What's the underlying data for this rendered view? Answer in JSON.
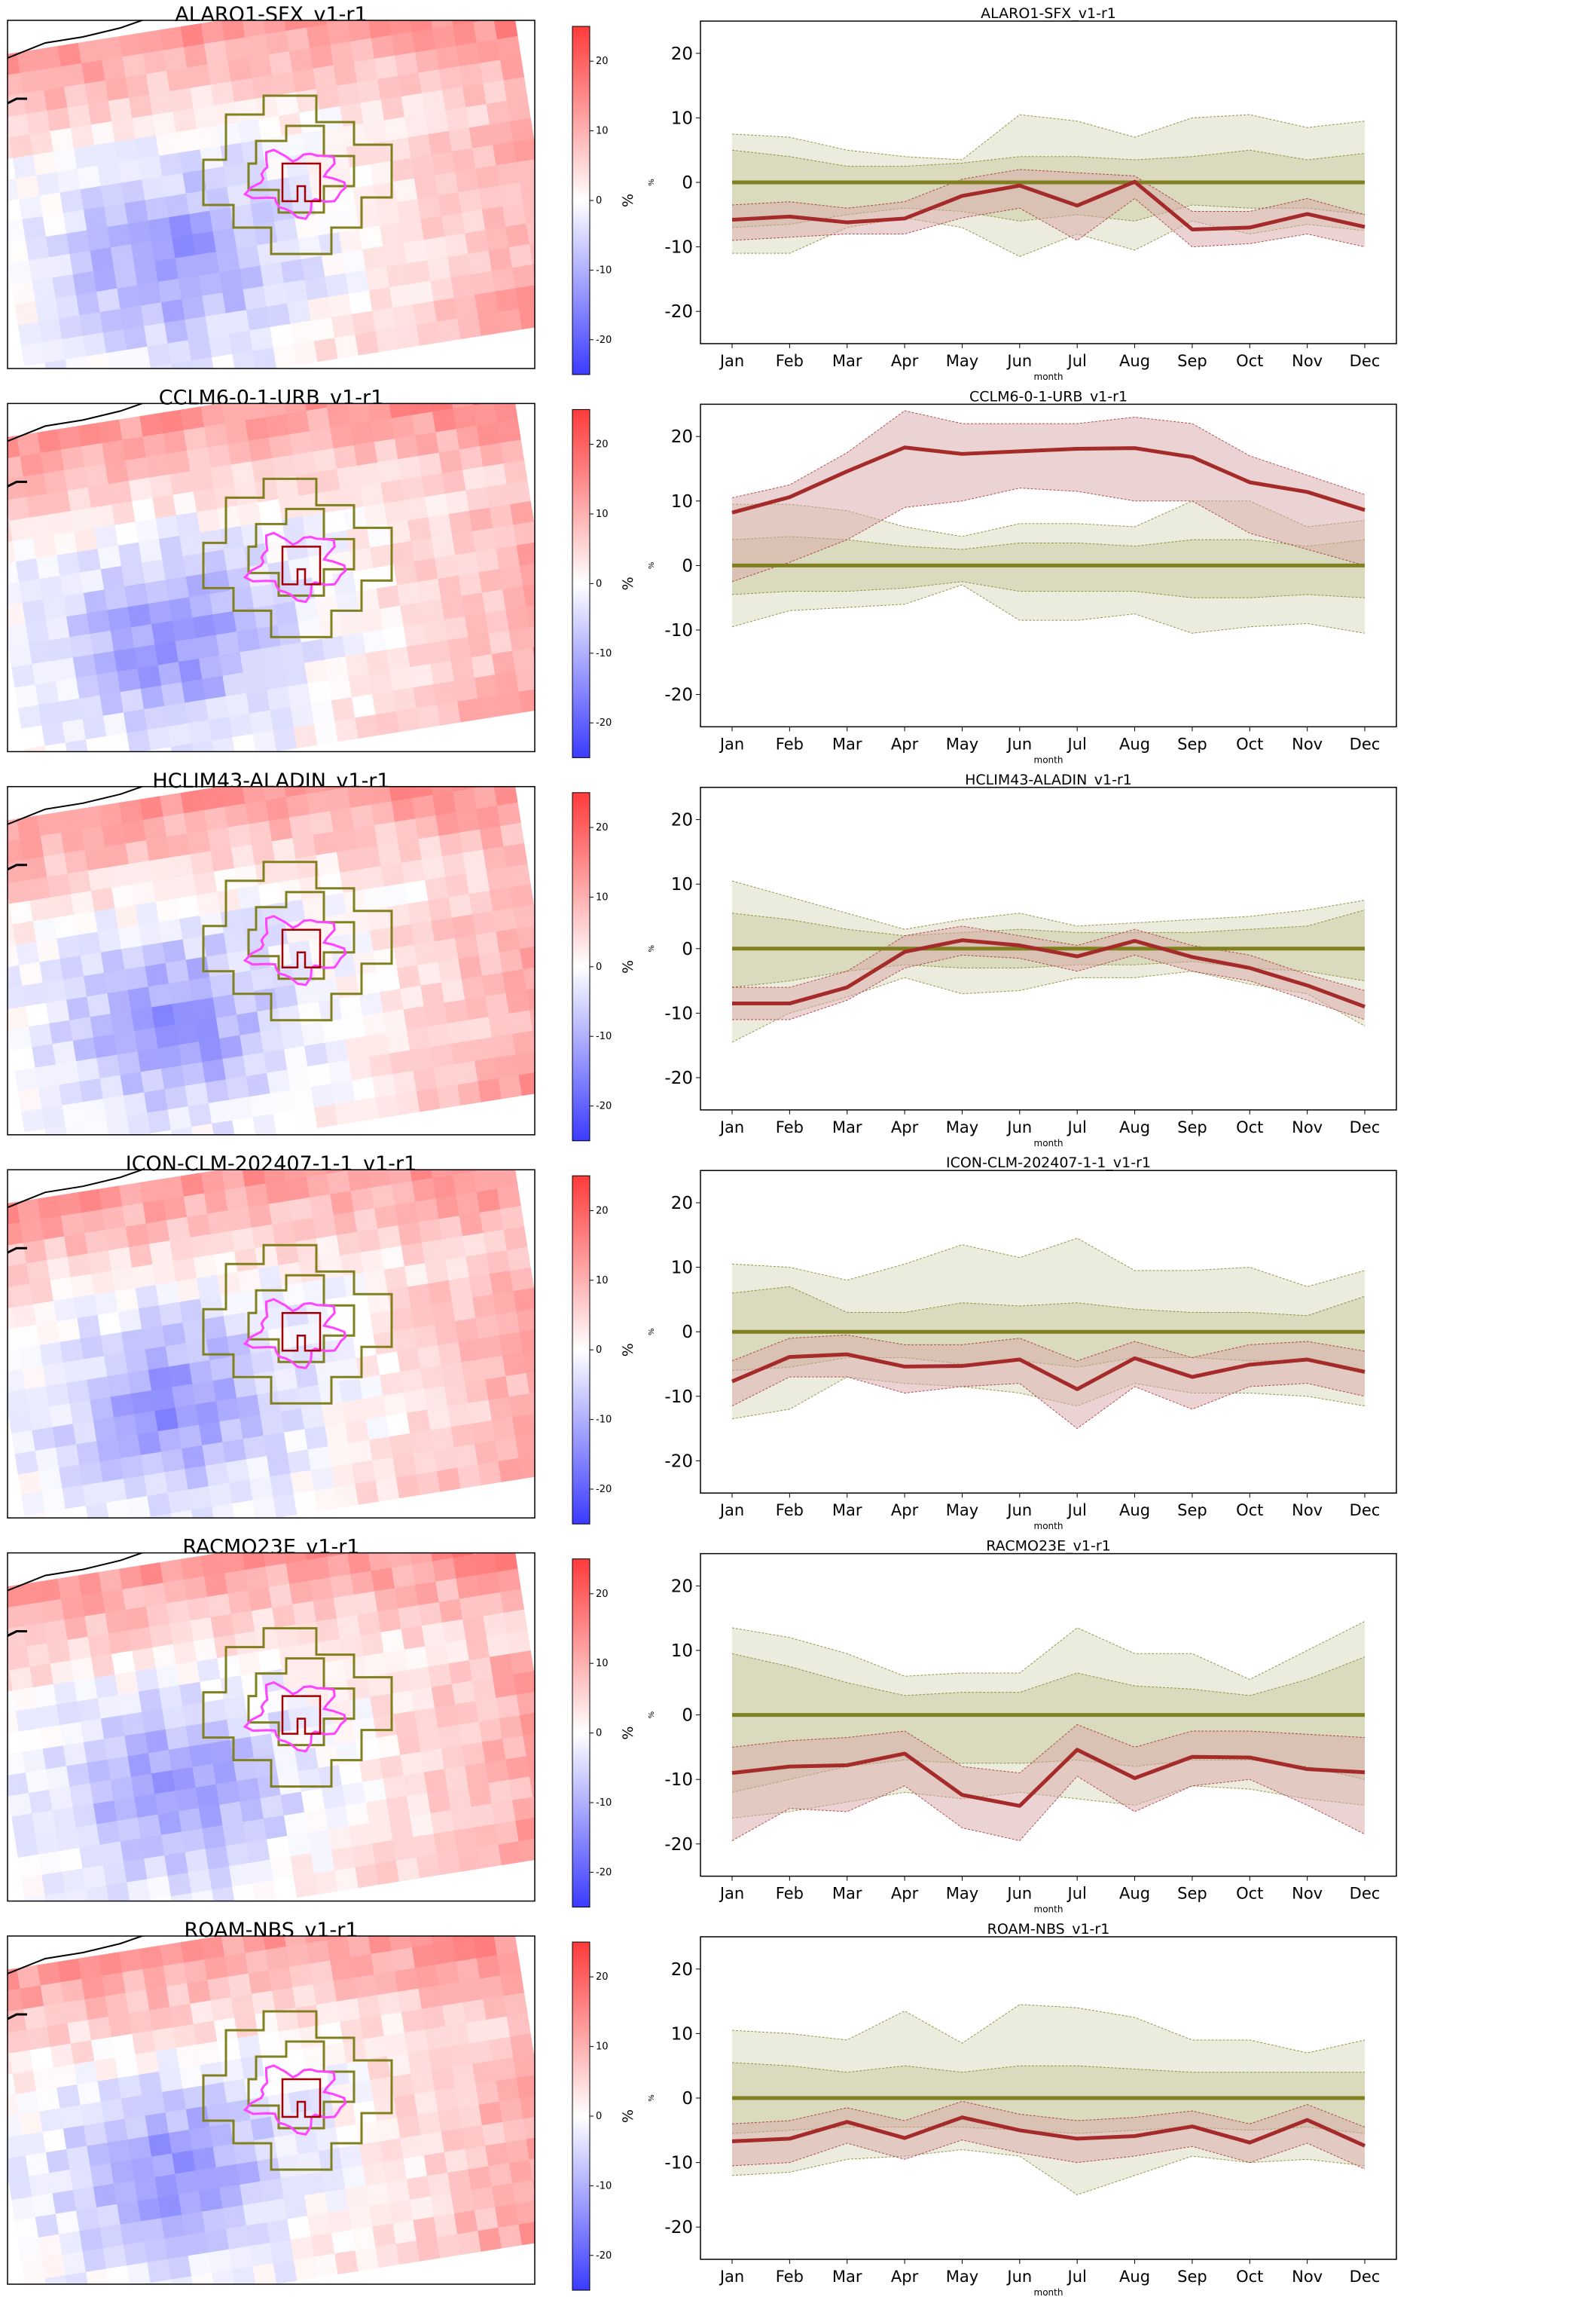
{
  "colorbar": {
    "ticks": [
      -20,
      -10,
      0,
      10,
      20
    ],
    "range": [
      -25,
      25
    ],
    "unit_label": "%",
    "colors": {
      "low": "#3b3bff",
      "mid": "#ffffff",
      "high": "#ff3b3b"
    }
  },
  "colors": {
    "model_line": "#a52a2a",
    "model_band": "#d8a8a8",
    "reference_line": "#808020",
    "reference_band": "#c8c8a0",
    "urban_outline": "#ff44ff",
    "rural_ring_outline": "#808020",
    "city_cell_outline": "#a00000",
    "coastline": "#000000"
  },
  "shared": {
    "xlabel": "month",
    "ylabel": "%",
    "months": [
      "Jan",
      "Feb",
      "Mar",
      "Apr",
      "May",
      "Jun",
      "Jul",
      "Aug",
      "Sep",
      "Oct",
      "Nov",
      "Dec"
    ],
    "yticks": [
      -20,
      -10,
      0,
      10,
      20
    ],
    "ylim": [
      -25,
      25
    ]
  },
  "chart_data": [
    {
      "type": "line",
      "title": "ALARO1-SFX_v1-r1",
      "map_title": "ALARO1-SFX_v1-r1",
      "series": [
        {
          "values": [
            -5.8,
            -5.3,
            -6.2,
            -5.6,
            -2.1,
            -0.5,
            -3.6,
            0.1,
            -7.3,
            -7.0,
            -4.9,
            -6.9
          ]
        },
        {
          "values": [
            0,
            0,
            0,
            0,
            0,
            0,
            0,
            0,
            0,
            0,
            0,
            0
          ]
        }
      ],
      "model_band": {
        "upper": [
          -3.5,
          -3.0,
          -4.0,
          -3.0,
          0.5,
          2.0,
          1.5,
          1.0,
          -4.5,
          -4.5,
          -2.5,
          -5.0
        ],
        "lower": [
          -9.0,
          -8.5,
          -8.0,
          -8.0,
          -5.5,
          -4.0,
          -9.0,
          -2.5,
          -10.0,
          -9.5,
          -8.0,
          -10.0
        ]
      },
      "ref_band_outer": {
        "upper": [
          7.5,
          7.0,
          5.0,
          4.0,
          3.5,
          10.5,
          9.5,
          7.0,
          10.0,
          10.5,
          8.5,
          9.5
        ],
        "lower": [
          -11.0,
          -11.0,
          -7.0,
          -5.5,
          -7.0,
          -11.5,
          -8.0,
          -10.5,
          -6.0,
          -8.0,
          -6.5,
          -7.5
        ]
      },
      "ref_band_inner": {
        "upper": [
          5.0,
          4.0,
          2.5,
          2.5,
          3.0,
          4.0,
          4.0,
          3.5,
          4.0,
          5.0,
          3.5,
          4.5
        ],
        "lower": [
          -7.0,
          -6.5,
          -5.0,
          -4.0,
          -4.5,
          -6.0,
          -5.0,
          -6.0,
          -3.5,
          -4.0,
          -4.0,
          -5.0
        ]
      }
    },
    {
      "type": "line",
      "title": "CCLM6-0-1-URB_v1-r1",
      "map_title": "CCLM6-0-1-URB_v1-r1",
      "series": [
        {
          "values": [
            8.2,
            10.6,
            14.6,
            18.3,
            17.3,
            17.7,
            18.1,
            18.2,
            16.8,
            12.9,
            11.4,
            8.6
          ]
        },
        {
          "values": [
            0,
            0,
            0,
            0,
            0,
            0,
            0,
            0,
            0,
            0,
            0,
            0
          ]
        }
      ],
      "model_band": {
        "upper": [
          10.5,
          12.5,
          17.5,
          24.0,
          22.0,
          22.0,
          22.0,
          23.0,
          22.0,
          17.0,
          14.0,
          11.0
        ],
        "lower": [
          -2.5,
          0.5,
          4.0,
          9.0,
          10.0,
          12.0,
          11.5,
          10.0,
          10.0,
          5.0,
          2.5,
          0.0
        ]
      },
      "ref_band_outer": {
        "upper": [
          9.5,
          9.5,
          8.5,
          6.0,
          4.5,
          6.5,
          6.5,
          6.0,
          10.0,
          10.0,
          6.0,
          7.0
        ],
        "lower": [
          -9.5,
          -7.0,
          -6.5,
          -6.0,
          -3.0,
          -8.5,
          -8.5,
          -7.5,
          -10.5,
          -9.5,
          -9.0,
          -10.5
        ]
      },
      "ref_band_inner": {
        "upper": [
          4.0,
          4.5,
          4.0,
          3.0,
          2.5,
          3.5,
          3.5,
          3.0,
          4.0,
          4.0,
          3.0,
          4.0
        ],
        "lower": [
          -4.5,
          -4.0,
          -4.0,
          -3.5,
          -2.5,
          -4.0,
          -4.0,
          -4.0,
          -5.0,
          -5.0,
          -4.5,
          -5.0
        ]
      }
    },
    {
      "type": "line",
      "title": "HCLIM43-ALADIN_v1-r1",
      "map_title": "HCLIM43-ALADIN_v1-r1",
      "series": [
        {
          "values": [
            -8.5,
            -8.5,
            -6.0,
            -0.5,
            1.3,
            0.5,
            -1.2,
            1.2,
            -1.3,
            -3.0,
            -5.7,
            -9.0
          ]
        },
        {
          "values": [
            0,
            0,
            0,
            0,
            0,
            0,
            0,
            0,
            0,
            0,
            0,
            0
          ]
        }
      ],
      "model_band": {
        "upper": [
          -6.0,
          -6.0,
          -3.5,
          2.0,
          3.5,
          2.0,
          0.5,
          3.0,
          0.5,
          -1.0,
          -4.0,
          -6.5
        ],
        "lower": [
          -11.0,
          -11.0,
          -8.0,
          -3.0,
          -1.0,
          -1.5,
          -3.5,
          -1.0,
          -3.5,
          -5.0,
          -8.0,
          -11.0
        ]
      },
      "ref_band_outer": {
        "upper": [
          10.5,
          8.0,
          5.5,
          3.0,
          4.5,
          5.5,
          3.5,
          4.0,
          4.5,
          5.0,
          6.0,
          7.5
        ],
        "lower": [
          -14.5,
          -10.0,
          -7.5,
          -4.5,
          -7.0,
          -6.5,
          -4.5,
          -4.5,
          -3.5,
          -5.5,
          -7.0,
          -12.0
        ]
      },
      "ref_band_inner": {
        "upper": [
          5.5,
          4.5,
          3.0,
          2.0,
          2.5,
          3.0,
          2.5,
          2.5,
          2.5,
          3.0,
          3.5,
          6.0
        ],
        "lower": [
          -6.0,
          -5.0,
          -3.5,
          -2.5,
          -3.0,
          -3.0,
          -2.5,
          -2.5,
          -2.0,
          -3.0,
          -3.5,
          -5.0
        ]
      }
    },
    {
      "type": "line",
      "title": "ICON-CLM-202407-1-1_v1-r1",
      "map_title": "ICON-CLM-202407-1-1_v1-r1",
      "series": [
        {
          "values": [
            -7.7,
            -3.9,
            -3.5,
            -5.4,
            -5.3,
            -4.3,
            -8.9,
            -4.1,
            -7.0,
            -5.1,
            -4.3,
            -6.2
          ]
        },
        {
          "values": [
            0,
            0,
            0,
            0,
            0,
            0,
            0,
            0,
            0,
            0,
            0,
            0
          ]
        }
      ],
      "model_band": {
        "upper": [
          -4.5,
          -1.0,
          -0.5,
          -2.0,
          -2.0,
          -1.0,
          -4.5,
          -1.5,
          -4.0,
          -2.0,
          -1.5,
          -3.0
        ],
        "lower": [
          -11.5,
          -7.0,
          -7.0,
          -9.5,
          -8.5,
          -8.0,
          -15.0,
          -8.5,
          -12.0,
          -8.5,
          -8.0,
          -10.0
        ]
      },
      "ref_band_outer": {
        "upper": [
          10.5,
          10.0,
          8.0,
          10.5,
          13.5,
          11.5,
          14.5,
          9.5,
          9.5,
          10.0,
          7.0,
          9.5
        ],
        "lower": [
          -13.5,
          -12.0,
          -7.0,
          -8.0,
          -8.5,
          -9.5,
          -11.5,
          -8.0,
          -9.5,
          -9.5,
          -10.0,
          -11.5
        ]
      },
      "ref_band_inner": {
        "upper": [
          6.0,
          7.0,
          3.0,
          3.0,
          4.5,
          4.0,
          4.5,
          3.5,
          3.0,
          3.0,
          2.5,
          5.5
        ],
        "lower": [
          -6.0,
          -5.5,
          -4.0,
          -4.0,
          -5.0,
          -4.5,
          -5.5,
          -4.0,
          -4.0,
          -4.5,
          -4.5,
          -6.5
        ]
      }
    },
    {
      "type": "line",
      "title": "RACMO23E_v1-r1",
      "map_title": "RACMO23E_v1-r1",
      "series": [
        {
          "values": [
            -9.0,
            -8.0,
            -7.8,
            -6.0,
            -12.4,
            -14.1,
            -5.4,
            -9.8,
            -6.5,
            -6.6,
            -8.4,
            -8.9
          ]
        },
        {
          "values": [
            0,
            0,
            0,
            0,
            0,
            0,
            0,
            0,
            0,
            0,
            0,
            0
          ]
        }
      ],
      "model_band": {
        "upper": [
          -5.0,
          -4.0,
          -3.5,
          -2.5,
          -8.0,
          -9.0,
          -1.5,
          -5.0,
          -2.5,
          -2.5,
          -3.0,
          -3.5
        ],
        "lower": [
          -19.5,
          -14.5,
          -15.0,
          -11.0,
          -17.5,
          -19.5,
          -9.5,
          -15.0,
          -11.0,
          -10.0,
          -14.0,
          -18.5
        ]
      },
      "ref_band_outer": {
        "upper": [
          13.5,
          12.0,
          9.5,
          6.0,
          6.5,
          6.5,
          13.5,
          9.5,
          9.5,
          5.5,
          10.0,
          14.5
        ],
        "lower": [
          -16.0,
          -15.0,
          -13.5,
          -12.0,
          -13.0,
          -12.0,
          -13.0,
          -14.0,
          -11.0,
          -11.5,
          -13.0,
          -14.0
        ]
      },
      "ref_band_inner": {
        "upper": [
          9.5,
          7.5,
          5.0,
          3.0,
          3.5,
          3.5,
          6.5,
          4.5,
          4.0,
          3.0,
          5.5,
          9.0
        ],
        "lower": [
          -12.0,
          -10.0,
          -8.0,
          -7.0,
          -7.5,
          -7.5,
          -7.0,
          -8.0,
          -7.0,
          -7.0,
          -8.0,
          -10.0
        ]
      }
    },
    {
      "type": "line",
      "title": "ROAM-NBS_v1-r1",
      "map_title": "ROAM-NBS_v1-r1",
      "series": [
        {
          "values": [
            -6.7,
            -6.3,
            -3.7,
            -6.2,
            -3.0,
            -5.0,
            -6.3,
            -5.9,
            -4.4,
            -6.9,
            -3.4,
            -7.4
          ]
        },
        {
          "values": [
            0,
            0,
            0,
            0,
            0,
            0,
            0,
            0,
            0,
            0,
            0,
            0
          ]
        }
      ],
      "model_band": {
        "upper": [
          -4.0,
          -3.5,
          -1.5,
          -3.5,
          -0.5,
          -2.5,
          -3.5,
          -3.0,
          -2.0,
          -4.0,
          -1.0,
          -4.5
        ],
        "lower": [
          -10.5,
          -10.0,
          -7.0,
          -9.5,
          -6.5,
          -8.5,
          -10.0,
          -9.0,
          -7.5,
          -10.0,
          -7.0,
          -11.0
        ]
      },
      "ref_band_outer": {
        "upper": [
          10.5,
          10.0,
          9.0,
          13.5,
          8.5,
          14.5,
          14.0,
          12.5,
          9.0,
          9.0,
          7.0,
          9.0
        ],
        "lower": [
          -12.0,
          -11.5,
          -9.5,
          -9.0,
          -8.0,
          -9.0,
          -15.0,
          -12.0,
          -9.0,
          -10.0,
          -9.5,
          -10.5
        ]
      },
      "ref_band_inner": {
        "upper": [
          5.5,
          5.0,
          4.0,
          5.0,
          4.0,
          5.0,
          5.0,
          4.5,
          4.0,
          4.0,
          4.0,
          4.0
        ],
        "lower": [
          -5.5,
          -5.0,
          -4.5,
          -4.5,
          -4.5,
          -5.0,
          -5.5,
          -5.0,
          -4.5,
          -5.0,
          -4.5,
          -5.5
        ]
      }
    }
  ]
}
